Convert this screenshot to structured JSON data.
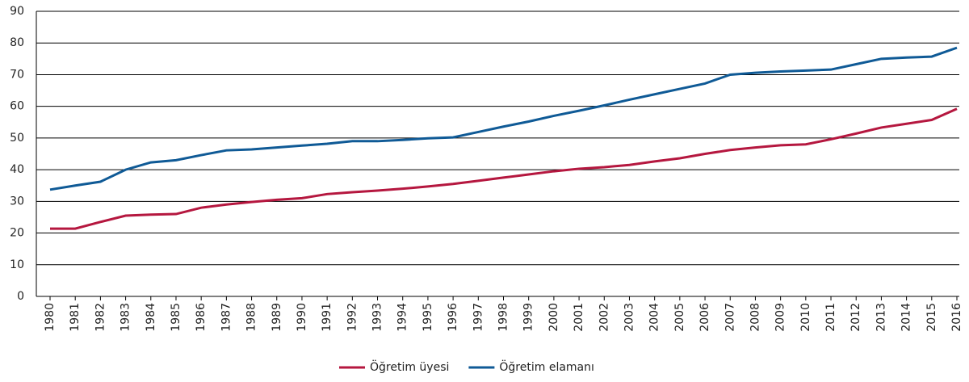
{
  "chart_data": {
    "type": "line",
    "x": [
      "1980",
      "1981",
      "1982",
      "1983",
      "1984",
      "1985",
      "1986",
      "1987",
      "1988",
      "1989",
      "1990",
      "1991",
      "1992",
      "1993",
      "1994",
      "1995",
      "1996",
      "1997",
      "1998",
      "1999",
      "2000",
      "2001",
      "2002",
      "2003",
      "2004",
      "2005",
      "2006",
      "2007",
      "2008",
      "2009",
      "2010",
      "2011",
      "2012",
      "2013",
      "2014",
      "2015",
      "2016"
    ],
    "series": [
      {
        "name": "Öğretim üyesi",
        "color": "#b5173f",
        "values": [
          21.4,
          21.4,
          23.5,
          25.5,
          25.8,
          26,
          28,
          29,
          29.8,
          30.5,
          31,
          32.3,
          32.9,
          33.4,
          34,
          34.7,
          35.5,
          36.5,
          37.5,
          38.5,
          39.5,
          40.3,
          40.8,
          41.5,
          42.6,
          43.6,
          45,
          46.2,
          47,
          47.7,
          48,
          49.6,
          51.4,
          53.3,
          54.5,
          55.7,
          59.2
        ]
      },
      {
        "name": "Öğretim elamanı",
        "color": "#0f5a96",
        "values": [
          33.7,
          35,
          36.2,
          40,
          42.3,
          43,
          44.6,
          46.1,
          46.4,
          47,
          47.6,
          48.2,
          49,
          49,
          49.4,
          49.9,
          50.2,
          51.9,
          53.6,
          55.2,
          57,
          58.6,
          60.3,
          62.1,
          63.8,
          65.5,
          67.2,
          70,
          70.6,
          71,
          71.3,
          71.6,
          73.3,
          75,
          75.4,
          75.7,
          78.5
        ]
      }
    ],
    "ylim": [
      0,
      90
    ],
    "yticks": [
      0,
      10,
      20,
      30,
      40,
      50,
      60,
      70,
      80,
      90
    ],
    "grid": true,
    "legend": "bottom"
  }
}
